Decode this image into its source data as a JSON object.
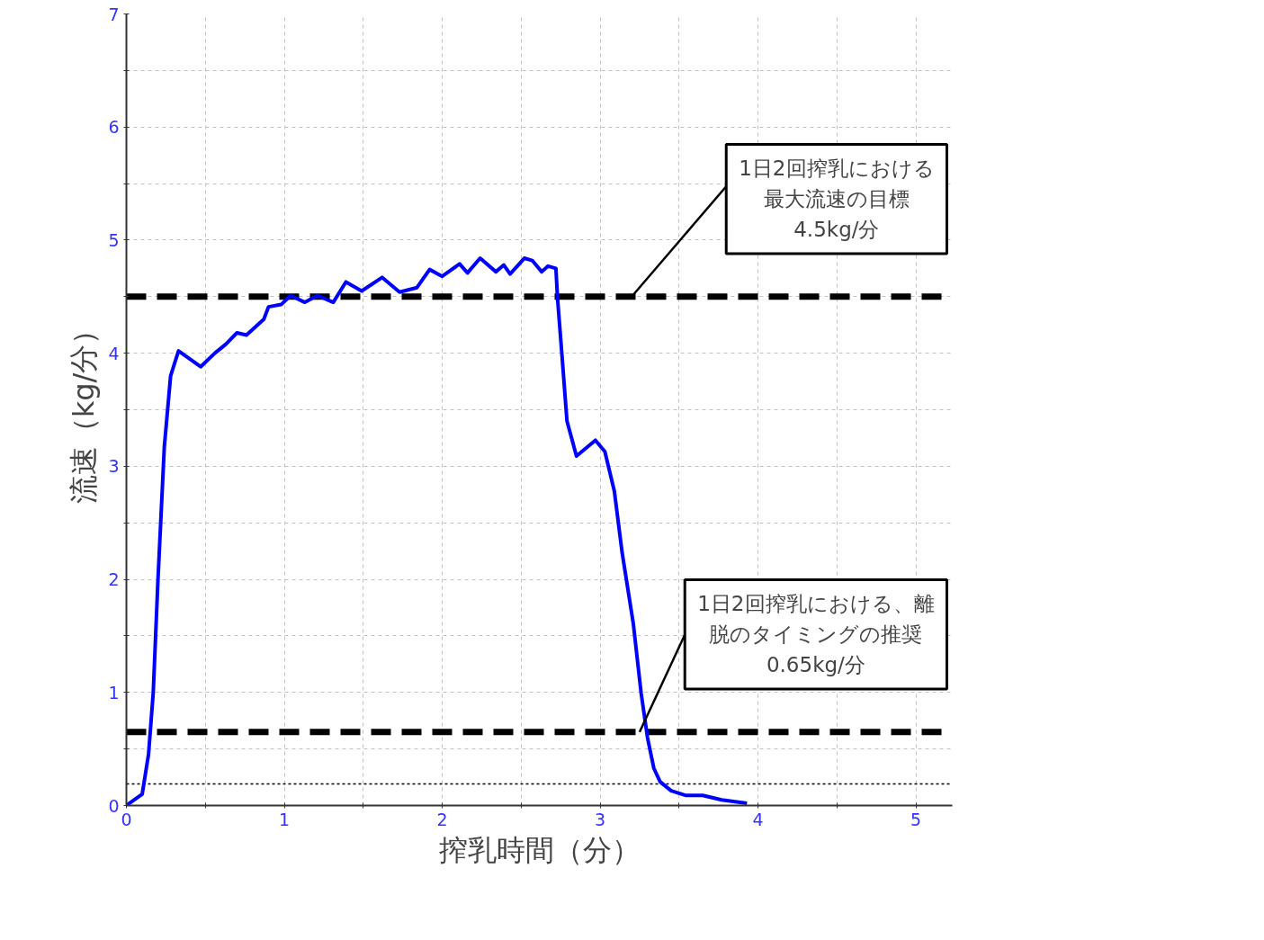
{
  "chart_data": {
    "type": "line",
    "xlabel": "搾乳時間（分）",
    "ylabel": "流速（kg/分）",
    "x": [
      0,
      0.02,
      0.1,
      0.14,
      0.17,
      0.2,
      0.24,
      0.28,
      0.33,
      0.47,
      0.56,
      0.63,
      0.7,
      0.76,
      0.87,
      0.9,
      0.98,
      1.04,
      1.13,
      1.21,
      1.31,
      1.39,
      1.49,
      1.62,
      1.73,
      1.84,
      1.92,
      2.0,
      2.11,
      2.16,
      2.24,
      2.34,
      2.39,
      2.43,
      2.52,
      2.57,
      2.63,
      2.67,
      2.72,
      2.73,
      2.76,
      2.79,
      2.85,
      2.97,
      3.03,
      3.09,
      3.14,
      3.21,
      3.26,
      3.3,
      3.34,
      3.38,
      3.45,
      3.54,
      3.65,
      3.77,
      3.93
    ],
    "series": [
      {
        "color": "#0000ff",
        "values": [
          0,
          0.02,
          0.1,
          0.45,
          1.0,
          2.0,
          3.17,
          3.8,
          4.02,
          3.88,
          4.0,
          4.08,
          4.18,
          4.16,
          4.3,
          4.41,
          4.43,
          4.51,
          4.45,
          4.51,
          4.45,
          4.63,
          4.55,
          4.67,
          4.54,
          4.58,
          4.74,
          4.68,
          4.79,
          4.71,
          4.84,
          4.72,
          4.78,
          4.7,
          4.84,
          4.82,
          4.72,
          4.77,
          4.75,
          4.49,
          3.95,
          3.4,
          3.09,
          3.23,
          3.13,
          2.78,
          2.23,
          1.61,
          0.99,
          0.6,
          0.33,
          0.21,
          0.13,
          0.09,
          0.09,
          0.05,
          0.02
        ]
      }
    ],
    "xlim": [
      0,
      5.23
    ],
    "ylim": [
      0,
      7
    ],
    "xticks": [
      0,
      {
        "value": 0.5,
        "label": null
      },
      1,
      {
        "value": 1.5,
        "label": null
      },
      2,
      {
        "value": 2.5,
        "label": null
      },
      3,
      {
        "value": 3.5,
        "label": null
      },
      4,
      {
        "value": 4.5,
        "label": null
      },
      5
    ],
    "yticks": [
      0,
      {
        "value": 0.5,
        "label": null
      },
      1,
      {
        "value": 1.5,
        "label": null
      },
      2,
      {
        "value": 2.5,
        "label": null
      },
      3,
      {
        "value": 3.5,
        "label": null
      },
      4,
      {
        "value": 4.5,
        "label": null
      },
      5,
      {
        "value": 5.5,
        "label": null
      },
      6,
      {
        "value": 6.5,
        "label": null
      },
      7
    ],
    "grid": true,
    "marker": "none",
    "line_style": "solid",
    "ref_lines": [
      {
        "axis": "y",
        "value": 4.5,
        "color": "#000000",
        "line_style": "dashed"
      },
      {
        "axis": "y",
        "value": 0.65,
        "color": "#000000",
        "line_style": "dashed"
      },
      {
        "axis": "y",
        "value": 0.19,
        "color": "#000000",
        "line_style": "dotted"
      }
    ],
    "annotations": [
      {
        "text": "1日2回搾乳における",
        "x": 3.2,
        "y": 4.5
      },
      "最大流速の目標",
      "4.5kg/分",
      {
        "text": "1日2回搾乳における、離",
        "x": 3.25,
        "y": 0.65
      },
      "脱のタイミングの推奨",
      "0.65kg/分"
    ]
  }
}
